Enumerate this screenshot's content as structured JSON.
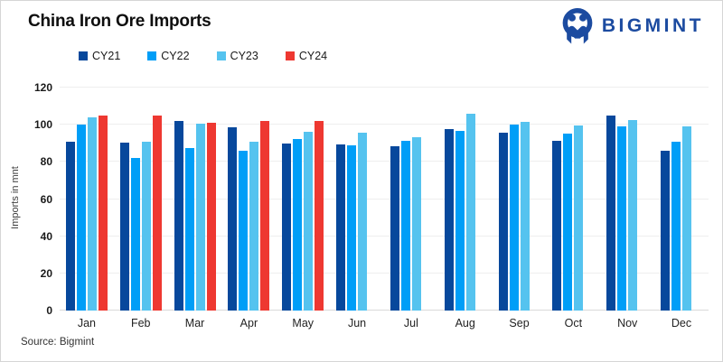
{
  "header": {
    "title": "China Iron Ore Imports",
    "brand": {
      "name": "BIGMINT",
      "color": "#1c4ba0"
    }
  },
  "source_note": "Source: Bigmint",
  "chart_data": {
    "type": "bar",
    "title": "China Iron Ore Imports",
    "xlabel": "",
    "ylabel": "Imports in mnt",
    "ylim": [
      0,
      120
    ],
    "yticks": [
      0,
      20,
      40,
      60,
      80,
      100,
      120
    ],
    "grid": true,
    "legend_position": "top-left",
    "categories": [
      "Jan",
      "Feb",
      "Mar",
      "Apr",
      "May",
      "Jun",
      "Jul",
      "Aug",
      "Sep",
      "Oct",
      "Nov",
      "Dec"
    ],
    "series": [
      {
        "name": "CY21",
        "color": "#07489c",
        "values": [
          91,
          90.5,
          102,
          98.5,
          90,
          89.5,
          88.5,
          97.5,
          95.5,
          91.5,
          105,
          86
        ]
      },
      {
        "name": "CY22",
        "color": "#009ef7",
        "values": [
          100,
          82,
          87.5,
          86,
          92.5,
          89,
          91.5,
          96.5,
          100,
          95,
          99,
          91
        ]
      },
      {
        "name": "CY23",
        "color": "#55c3ef",
        "values": [
          104,
          91,
          100.5,
          91,
          96,
          95.5,
          93.5,
          106,
          101.5,
          99.5,
          102.5,
          99
        ]
      },
      {
        "name": "CY24",
        "color": "#ee3831",
        "values": [
          105,
          105,
          101,
          102,
          102,
          null,
          null,
          null,
          null,
          null,
          null,
          null
        ]
      }
    ]
  }
}
